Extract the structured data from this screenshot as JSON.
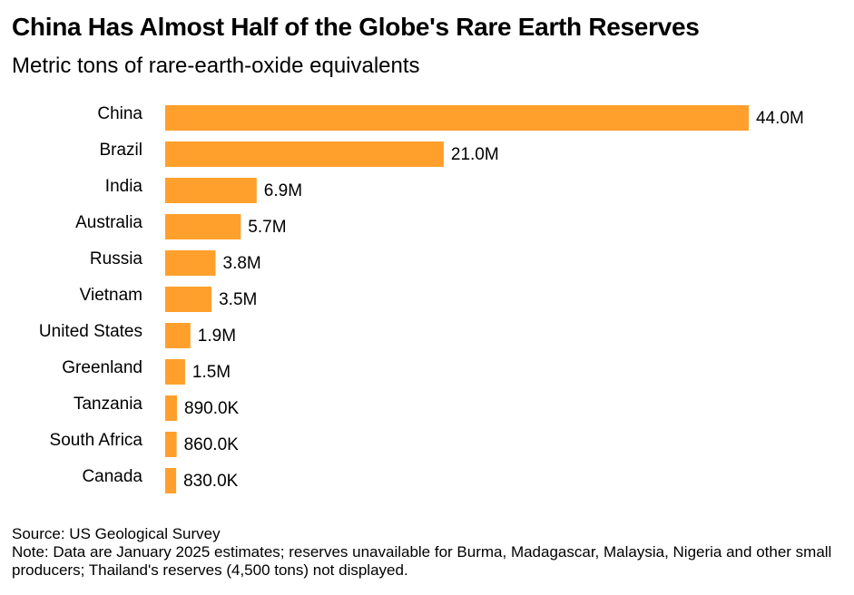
{
  "header": {
    "title": "China Has Almost Half of the Globe's Rare Earth Reserves",
    "subtitle": "Metric tons of rare-earth-oxide equivalents"
  },
  "chart_data": {
    "type": "bar",
    "orientation": "horizontal",
    "title": "China Has Almost Half of the Globe's Rare Earth Reserves",
    "subtitle": "Metric tons of rare-earth-oxide equivalents",
    "xlabel": "",
    "ylabel": "",
    "categories": [
      "China",
      "Brazil",
      "India",
      "Australia",
      "Russia",
      "Vietnam",
      "United States",
      "Greenland",
      "Tanzania",
      "South Africa",
      "Canada"
    ],
    "values": [
      44000000,
      21000000,
      6900000,
      5700000,
      3800000,
      3500000,
      1900000,
      1500000,
      890000,
      860000,
      830000
    ],
    "labels": [
      "44.0M",
      "21.0M",
      "6.9M",
      "5.7M",
      "3.8M",
      "3.5M",
      "1.9M",
      "1.5M",
      "890.0K",
      "860.0K",
      "830.0K"
    ],
    "xlim": [
      0,
      44000000
    ],
    "grid": false,
    "legend": "none",
    "bar_color": "#FFA02C"
  },
  "footer": {
    "source": "Source: US Geological Survey",
    "note": "Note: Data are January 2025 estimates; reserves unavailable for Burma, Madagascar, Malaysia, Nigeria and other small producers; Thailand's reserves (4,500 tons) not displayed."
  }
}
